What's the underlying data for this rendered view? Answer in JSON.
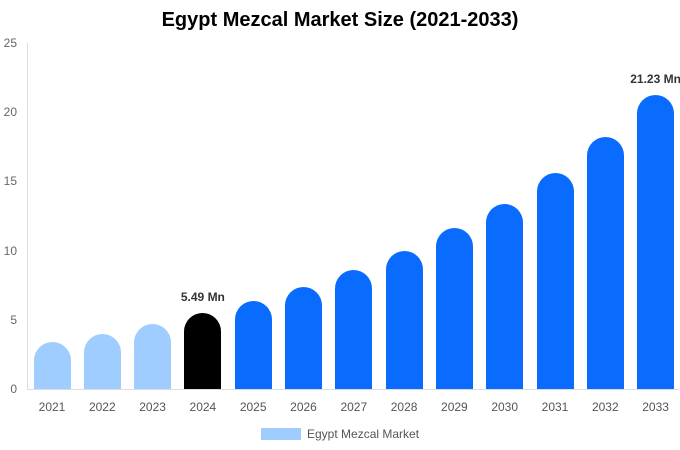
{
  "chart_data": {
    "type": "bar",
    "title": "Egypt Mezcal Market Size (2021-2033)",
    "xlabel": "",
    "ylabel": "",
    "ylim": [
      0,
      25
    ],
    "yticks": [
      0,
      5,
      10,
      15,
      20,
      25
    ],
    "grid": false,
    "legend_position": "bottom",
    "categories": [
      "2021",
      "2022",
      "2023",
      "2024",
      "2025",
      "2026",
      "2027",
      "2028",
      "2029",
      "2030",
      "2031",
      "2032",
      "2033"
    ],
    "series": [
      {
        "name": "Egypt Mezcal Market",
        "values": [
          3.4,
          4.0,
          4.7,
          5.49,
          6.35,
          7.37,
          8.6,
          10.0,
          11.6,
          13.4,
          15.6,
          18.2,
          21.23
        ]
      }
    ],
    "bar_colors": [
      "#9fcdff",
      "#9fcdff",
      "#9fcdff",
      "#000000",
      "#0a6cff",
      "#0a6cff",
      "#0a6cff",
      "#0a6cff",
      "#0a6cff",
      "#0a6cff",
      "#0a6cff",
      "#0a6cff",
      "#0a6cff"
    ],
    "annotations": [
      {
        "category": "2024",
        "text": "5.49 Mn"
      },
      {
        "category": "2033",
        "text": "21.23 Mn"
      }
    ]
  },
  "legend": {
    "label": "Egypt Mezcal Market",
    "color": "#9fcdff"
  }
}
